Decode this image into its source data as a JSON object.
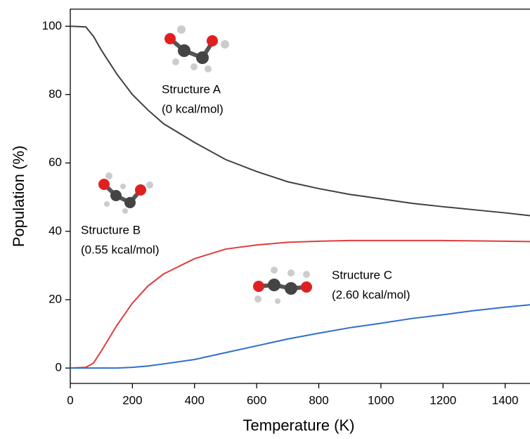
{
  "chart_data": {
    "type": "line",
    "x_label": "Temperature (K)",
    "y_label": "Population (%)",
    "x": [
      0,
      50,
      75,
      100,
      150,
      200,
      250,
      300,
      400,
      500,
      600,
      700,
      800,
      900,
      1000,
      1100,
      1200,
      1300,
      1400,
      1480
    ],
    "series": [
      {
        "name": "Structure A",
        "color": "#404040",
        "values": [
          100,
          99.8,
          97,
          93,
          86,
          80,
          75.5,
          71.5,
          66,
          61,
          57.5,
          54.5,
          52.5,
          50.8,
          49.5,
          48.2,
          47.2,
          46.3,
          45.4,
          44.6
        ]
      },
      {
        "name": "Structure B",
        "color": "#e03c3c",
        "values": [
          0,
          0.2,
          1.5,
          5,
          12.5,
          19,
          24,
          27.5,
          32,
          34.8,
          36,
          36.8,
          37.1,
          37.3,
          37.3,
          37.3,
          37.3,
          37.2,
          37.1,
          37
        ]
      },
      {
        "name": "Structure C",
        "color": "#2f6fc9",
        "values": [
          0,
          0,
          0,
          0,
          0,
          0.2,
          0.6,
          1.2,
          2.5,
          4.5,
          6.5,
          8.5,
          10.2,
          11.8,
          13.1,
          14.5,
          15.6,
          16.8,
          17.8,
          18.5
        ]
      }
    ],
    "annotations": [
      [
        "Structure A",
        "(0 kcal/mol)"
      ],
      [
        "Structure B",
        "(0.55 kcal/mol)"
      ],
      [
        "Structure C",
        "(2.60 kcal/mol)"
      ]
    ],
    "xlim": [
      0,
      1480
    ],
    "ylim": [
      -4.5,
      105
    ],
    "xticks": [
      0,
      200,
      400,
      600,
      800,
      1000,
      1200,
      1400
    ],
    "yticks": [
      0,
      20,
      40,
      60,
      80,
      100
    ]
  }
}
